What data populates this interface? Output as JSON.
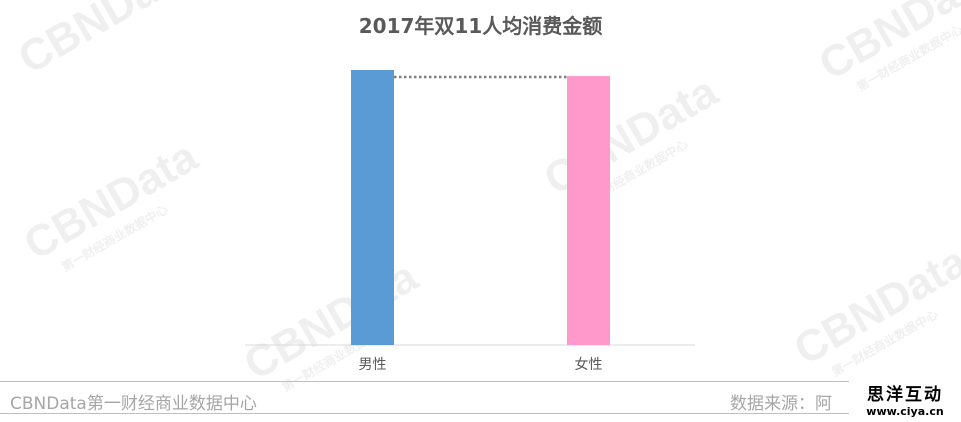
{
  "chart_data": {
    "type": "bar",
    "title": "2017年双11人均消费金额",
    "categories": [
      "男性",
      "女性"
    ],
    "values": [
      100,
      97.8
    ],
    "value_note_unit": "",
    "colors": [
      "#5b9bd5",
      "#ff99cc"
    ],
    "ylim": [
      0,
      100
    ],
    "grid": false,
    "reference_line": "dotted line from 男性 bar top to 女性 bar"
  },
  "watermark": {
    "brand": "CBNData",
    "sub": "第一财经商业数据中心"
  },
  "footer": {
    "left": "CBNData第一财经商业数据中心",
    "right": "数据来源：阿"
  },
  "logo": {
    "line1": "思洋互动",
    "line2": "www.ciya.cn"
  }
}
